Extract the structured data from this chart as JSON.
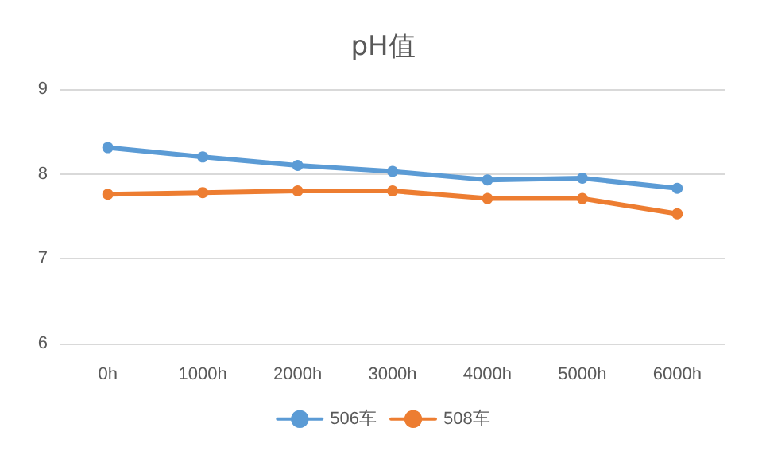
{
  "chart_data": {
    "type": "line",
    "title": "pH值",
    "categories": [
      "0h",
      "1000h",
      "2000h",
      "3000h",
      "4000h",
      "5000h",
      "6000h"
    ],
    "series": [
      {
        "name": "506车",
        "color": "#5b9bd5",
        "values": [
          8.31,
          8.2,
          8.1,
          8.03,
          7.93,
          7.95,
          7.83
        ]
      },
      {
        "name": "508车",
        "color": "#ed7d31",
        "values": [
          7.76,
          7.78,
          7.8,
          7.8,
          7.71,
          7.71,
          7.53
        ]
      }
    ],
    "ylim": [
      6,
      9
    ],
    "yticks": [
      6,
      7,
      8,
      9
    ],
    "grid": "y",
    "legend": "bottom",
    "marker": "circle",
    "line_style": "solid"
  }
}
